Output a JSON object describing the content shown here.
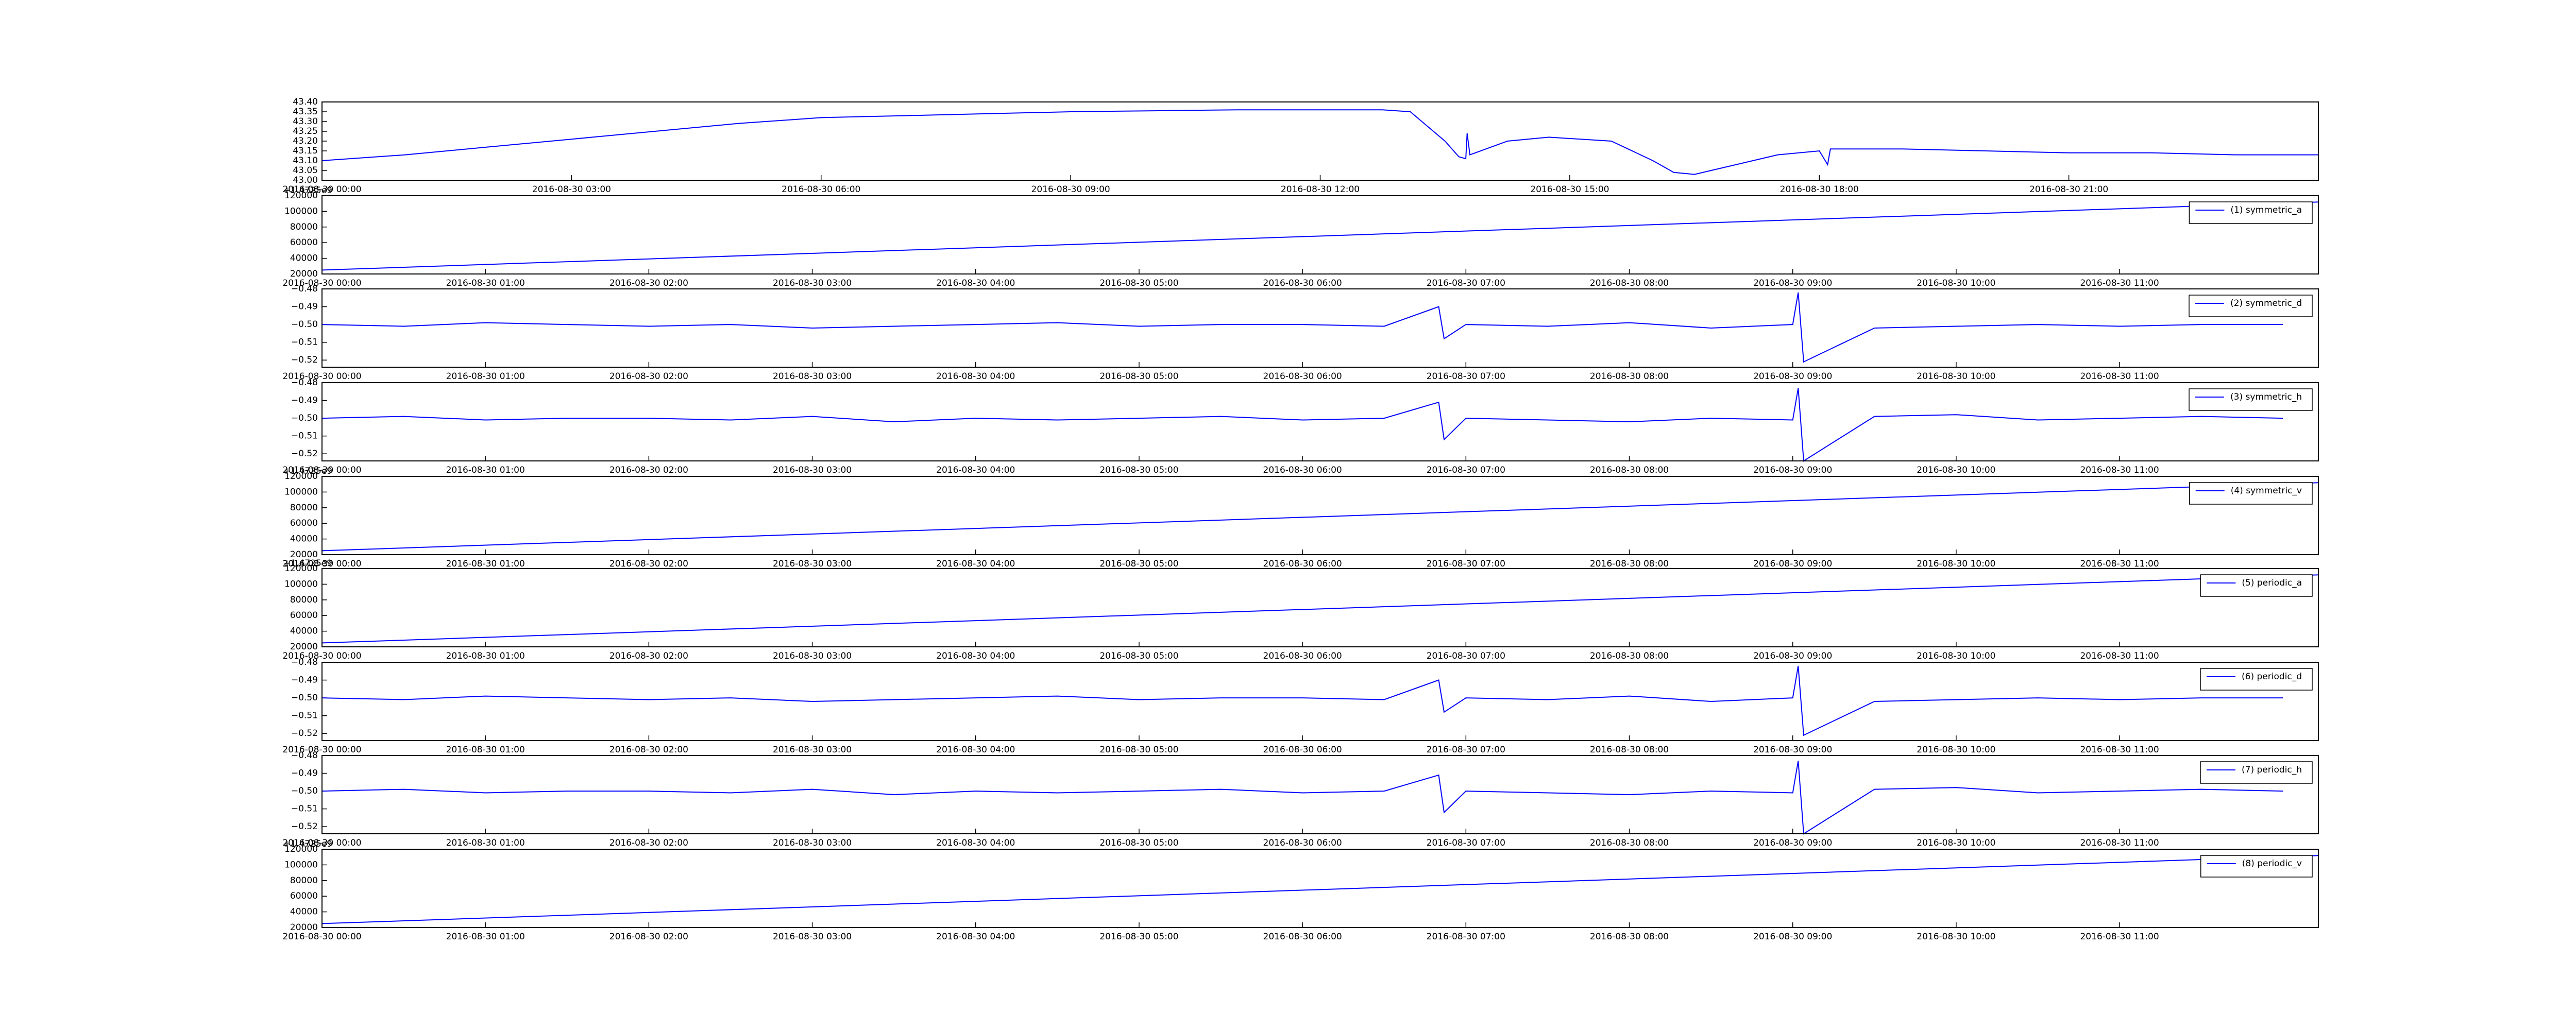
{
  "chart_data": [
    {
      "type": "line",
      "x": [
        "2016-08-30 00:00",
        "2016-08-30 01:00",
        "2016-08-30 02:00",
        "2016-08-30 03:00",
        "2016-08-30 04:00",
        "2016-08-30 05:00",
        "2016-08-30 06:00",
        "2016-08-30 07:00",
        "2016-08-30 08:00",
        "2016-08-30 09:00",
        "2016-08-30 10:00",
        "2016-08-30 11:00",
        "2016-08-30 12:00",
        "2016-08-30 12:45",
        "2016-08-30 13:05",
        "2016-08-30 13:30",
        "2016-08-30 13:40",
        "2016-08-30 13:45",
        "2016-08-30 13:46",
        "2016-08-30 13:48",
        "2016-08-30 14:15",
        "2016-08-30 14:45",
        "2016-08-30 15:30",
        "2016-08-30 16:00",
        "2016-08-30 16:15",
        "2016-08-30 16:30",
        "2016-08-30 17:00",
        "2016-08-30 17:30",
        "2016-08-30 18:00",
        "2016-08-30 18:06",
        "2016-08-30 18:08",
        "2016-08-30 19:00",
        "2016-08-30 20:00",
        "2016-08-30 21:00",
        "2016-08-30 22:00",
        "2016-08-30 23:00",
        "2016-08-31 00:00"
      ],
      "series": [
        {
          "color": "#0000ff",
          "values": [
            43.1,
            43.13,
            43.17,
            43.21,
            43.25,
            43.29,
            43.32,
            43.33,
            43.34,
            43.35,
            43.355,
            43.36,
            43.36,
            43.36,
            43.35,
            43.2,
            43.12,
            43.11,
            43.24,
            43.13,
            43.2,
            43.22,
            43.2,
            43.1,
            43.04,
            43.03,
            43.08,
            43.13,
            43.15,
            43.08,
            43.16,
            43.16,
            43.15,
            43.14,
            43.14,
            43.13,
            43.13
          ]
        }
      ],
      "xlim": [
        "2016-08-30 00:00",
        "2016-08-31 00:00"
      ],
      "xticks": [
        "2016-08-30 00:00",
        "2016-08-30 03:00",
        "2016-08-30 06:00",
        "2016-08-30 09:00",
        "2016-08-30 12:00",
        "2016-08-30 15:00",
        "2016-08-30 18:00",
        "2016-08-30 21:00"
      ],
      "ylim": [
        43.0,
        43.4
      ],
      "yticks": [
        {
          "value": 43.0,
          "label": "43.00"
        },
        43.05,
        {
          "value": 43.1,
          "label": "43.10"
        },
        43.15,
        {
          "value": 43.2,
          "label": "43.20"
        },
        43.25,
        {
          "value": 43.3,
          "label": "43.30"
        },
        43.35,
        {
          "value": 43.4,
          "label": "43.40"
        }
      ]
    },
    {
      "type": "line",
      "offset_text": "+1.4725e9",
      "legend": "upper right",
      "x": [
        "2016-08-30 00:00",
        "2016-08-30 12:13"
      ],
      "series": [
        {
          "name": "(1) symmetric_a",
          "color": "#0000ff",
          "values": [
            25000,
            112000
          ]
        }
      ],
      "xlim": [
        "2016-08-30 00:00",
        "2016-08-30 12:13"
      ],
      "xticks": [
        "2016-08-30 00:00",
        "2016-08-30 01:00",
        "2016-08-30 02:00",
        "2016-08-30 03:00",
        "2016-08-30 04:00",
        "2016-08-30 05:00",
        "2016-08-30 06:00",
        "2016-08-30 07:00",
        "2016-08-30 08:00",
        "2016-08-30 09:00",
        "2016-08-30 10:00",
        "2016-08-30 11:00"
      ],
      "ylim": [
        20000,
        120000
      ],
      "yticks": [
        20000,
        40000,
        60000,
        80000,
        100000,
        120000
      ]
    },
    {
      "type": "line",
      "legend": "upper right",
      "x": [
        "2016-08-30 00:00",
        "2016-08-30 00:30",
        "2016-08-30 01:00",
        "2016-08-30 01:30",
        "2016-08-30 02:00",
        "2016-08-30 02:30",
        "2016-08-30 03:00",
        "2016-08-30 03:30",
        "2016-08-30 04:00",
        "2016-08-30 04:30",
        "2016-08-30 05:00",
        "2016-08-30 05:30",
        "2016-08-30 06:00",
        "2016-08-30 06:30",
        "2016-08-30 06:50",
        "2016-08-30 06:52",
        "2016-08-30 07:00",
        "2016-08-30 07:30",
        "2016-08-30 08:00",
        "2016-08-30 08:30",
        "2016-08-30 09:00",
        "2016-08-30 09:02",
        "2016-08-30 09:04",
        "2016-08-30 09:30",
        "2016-08-30 10:00",
        "2016-08-30 10:30",
        "2016-08-30 11:00",
        "2016-08-30 11:30",
        "2016-08-30 12:00"
      ],
      "series": [
        {
          "name": "(2) symmetric_d",
          "color": "#0000ff",
          "values": [
            -0.5,
            -0.501,
            -0.499,
            -0.5,
            -0.501,
            -0.5,
            -0.502,
            -0.501,
            -0.5,
            -0.499,
            -0.501,
            -0.5,
            -0.5,
            -0.501,
            -0.49,
            -0.508,
            -0.5,
            -0.501,
            -0.499,
            -0.502,
            -0.5,
            -0.482,
            -0.521,
            -0.502,
            -0.501,
            -0.5,
            -0.501,
            -0.5,
            -0.5
          ]
        }
      ],
      "xlim": [
        "2016-08-30 00:00",
        "2016-08-30 12:13"
      ],
      "xticks": [
        "2016-08-30 00:00",
        "2016-08-30 01:00",
        "2016-08-30 02:00",
        "2016-08-30 03:00",
        "2016-08-30 04:00",
        "2016-08-30 05:00",
        "2016-08-30 06:00",
        "2016-08-30 07:00",
        "2016-08-30 08:00",
        "2016-08-30 09:00",
        "2016-08-30 10:00",
        "2016-08-30 11:00"
      ],
      "ylim": [
        -0.524,
        -0.48
      ],
      "yticks": [
        {
          "value": -0.52,
          "label": "−0.52"
        },
        {
          "value": -0.51,
          "label": "−0.51"
        },
        {
          "value": -0.5,
          "label": "−0.50"
        },
        {
          "value": -0.49,
          "label": "−0.49"
        },
        {
          "value": -0.48,
          "label": "−0.48"
        }
      ]
    },
    {
      "type": "line",
      "legend": "upper right",
      "x": [
        "2016-08-30 00:00",
        "2016-08-30 00:30",
        "2016-08-30 01:00",
        "2016-08-30 01:30",
        "2016-08-30 02:00",
        "2016-08-30 02:30",
        "2016-08-30 03:00",
        "2016-08-30 03:30",
        "2016-08-30 04:00",
        "2016-08-30 04:30",
        "2016-08-30 05:00",
        "2016-08-30 05:30",
        "2016-08-30 06:00",
        "2016-08-30 06:30",
        "2016-08-30 06:50",
        "2016-08-30 06:52",
        "2016-08-30 07:00",
        "2016-08-30 07:30",
        "2016-08-30 08:00",
        "2016-08-30 08:30",
        "2016-08-30 09:00",
        "2016-08-30 09:02",
        "2016-08-30 09:04",
        "2016-08-30 09:30",
        "2016-08-30 10:00",
        "2016-08-30 10:30",
        "2016-08-30 11:00",
        "2016-08-30 11:30",
        "2016-08-30 12:00"
      ],
      "series": [
        {
          "name": "(3) symmetric_h",
          "color": "#0000ff",
          "values": [
            -0.5,
            -0.499,
            -0.501,
            -0.5,
            -0.5,
            -0.501,
            -0.499,
            -0.502,
            -0.5,
            -0.501,
            -0.5,
            -0.499,
            -0.501,
            -0.5,
            -0.491,
            -0.512,
            -0.5,
            -0.501,
            -0.502,
            -0.5,
            -0.501,
            -0.483,
            -0.524,
            -0.499,
            -0.498,
            -0.501,
            -0.5,
            -0.499,
            -0.5
          ]
        }
      ],
      "xlim": [
        "2016-08-30 00:00",
        "2016-08-30 12:13"
      ],
      "xticks": [
        "2016-08-30 00:00",
        "2016-08-30 01:00",
        "2016-08-30 02:00",
        "2016-08-30 03:00",
        "2016-08-30 04:00",
        "2016-08-30 05:00",
        "2016-08-30 06:00",
        "2016-08-30 07:00",
        "2016-08-30 08:00",
        "2016-08-30 09:00",
        "2016-08-30 10:00",
        "2016-08-30 11:00"
      ],
      "ylim": [
        -0.524,
        -0.48
      ],
      "yticks": [
        {
          "value": -0.52,
          "label": "−0.52"
        },
        {
          "value": -0.51,
          "label": "−0.51"
        },
        {
          "value": -0.5,
          "label": "−0.50"
        },
        {
          "value": -0.49,
          "label": "−0.49"
        },
        {
          "value": -0.48,
          "label": "−0.48"
        }
      ]
    },
    {
      "type": "line",
      "offset_text": "+1.4725e9",
      "legend": "upper right",
      "x": [
        "2016-08-30 00:00",
        "2016-08-30 12:13"
      ],
      "series": [
        {
          "name": "(4) symmetric_v",
          "color": "#0000ff",
          "values": [
            25000,
            112000
          ]
        }
      ],
      "xlim": [
        "2016-08-30 00:00",
        "2016-08-30 12:13"
      ],
      "xticks": [
        "2016-08-30 00:00",
        "2016-08-30 01:00",
        "2016-08-30 02:00",
        "2016-08-30 03:00",
        "2016-08-30 04:00",
        "2016-08-30 05:00",
        "2016-08-30 06:00",
        "2016-08-30 07:00",
        "2016-08-30 08:00",
        "2016-08-30 09:00",
        "2016-08-30 10:00",
        "2016-08-30 11:00"
      ],
      "ylim": [
        20000,
        120000
      ],
      "yticks": [
        20000,
        40000,
        60000,
        80000,
        100000,
        120000
      ]
    },
    {
      "type": "line",
      "offset_text": "+1.4725e9",
      "legend": "upper right",
      "x": [
        "2016-08-30 00:00",
        "2016-08-30 12:13"
      ],
      "series": [
        {
          "name": "(5) periodic_a",
          "color": "#0000ff",
          "values": [
            25000,
            112000
          ]
        }
      ],
      "xlim": [
        "2016-08-30 00:00",
        "2016-08-30 12:13"
      ],
      "xticks": [
        "2016-08-30 00:00",
        "2016-08-30 01:00",
        "2016-08-30 02:00",
        "2016-08-30 03:00",
        "2016-08-30 04:00",
        "2016-08-30 05:00",
        "2016-08-30 06:00",
        "2016-08-30 07:00",
        "2016-08-30 08:00",
        "2016-08-30 09:00",
        "2016-08-30 10:00",
        "2016-08-30 11:00"
      ],
      "ylim": [
        20000,
        120000
      ],
      "yticks": [
        20000,
        40000,
        60000,
        80000,
        100000,
        120000
      ]
    },
    {
      "type": "line",
      "legend": "upper right",
      "x": [
        "2016-08-30 00:00",
        "2016-08-30 00:30",
        "2016-08-30 01:00",
        "2016-08-30 01:30",
        "2016-08-30 02:00",
        "2016-08-30 02:30",
        "2016-08-30 03:00",
        "2016-08-30 03:30",
        "2016-08-30 04:00",
        "2016-08-30 04:30",
        "2016-08-30 05:00",
        "2016-08-30 05:30",
        "2016-08-30 06:00",
        "2016-08-30 06:30",
        "2016-08-30 06:50",
        "2016-08-30 06:52",
        "2016-08-30 07:00",
        "2016-08-30 07:30",
        "2016-08-30 08:00",
        "2016-08-30 08:30",
        "2016-08-30 09:00",
        "2016-08-30 09:02",
        "2016-08-30 09:04",
        "2016-08-30 09:30",
        "2016-08-30 10:00",
        "2016-08-30 10:30",
        "2016-08-30 11:00",
        "2016-08-30 11:30",
        "2016-08-30 12:00"
      ],
      "series": [
        {
          "name": "(6) periodic_d",
          "color": "#0000ff",
          "values": [
            -0.5,
            -0.501,
            -0.499,
            -0.5,
            -0.501,
            -0.5,
            -0.502,
            -0.501,
            -0.5,
            -0.499,
            -0.501,
            -0.5,
            -0.5,
            -0.501,
            -0.49,
            -0.508,
            -0.5,
            -0.501,
            -0.499,
            -0.502,
            -0.5,
            -0.482,
            -0.521,
            -0.502,
            -0.501,
            -0.5,
            -0.501,
            -0.5,
            -0.5
          ]
        }
      ],
      "xlim": [
        "2016-08-30 00:00",
        "2016-08-30 12:13"
      ],
      "xticks": [
        "2016-08-30 00:00",
        "2016-08-30 01:00",
        "2016-08-30 02:00",
        "2016-08-30 03:00",
        "2016-08-30 04:00",
        "2016-08-30 05:00",
        "2016-08-30 06:00",
        "2016-08-30 07:00",
        "2016-08-30 08:00",
        "2016-08-30 09:00",
        "2016-08-30 10:00",
        "2016-08-30 11:00"
      ],
      "ylim": [
        -0.524,
        -0.48
      ],
      "yticks": [
        {
          "value": -0.52,
          "label": "−0.52"
        },
        {
          "value": -0.51,
          "label": "−0.51"
        },
        {
          "value": -0.5,
          "label": "−0.50"
        },
        {
          "value": -0.49,
          "label": "−0.49"
        },
        {
          "value": -0.48,
          "label": "−0.48"
        }
      ]
    },
    {
      "type": "line",
      "legend": "upper right",
      "x": [
        "2016-08-30 00:00",
        "2016-08-30 00:30",
        "2016-08-30 01:00",
        "2016-08-30 01:30",
        "2016-08-30 02:00",
        "2016-08-30 02:30",
        "2016-08-30 03:00",
        "2016-08-30 03:30",
        "2016-08-30 04:00",
        "2016-08-30 04:30",
        "2016-08-30 05:00",
        "2016-08-30 05:30",
        "2016-08-30 06:00",
        "2016-08-30 06:30",
        "2016-08-30 06:50",
        "2016-08-30 06:52",
        "2016-08-30 07:00",
        "2016-08-30 07:30",
        "2016-08-30 08:00",
        "2016-08-30 08:30",
        "2016-08-30 09:00",
        "2016-08-30 09:02",
        "2016-08-30 09:04",
        "2016-08-30 09:30",
        "2016-08-30 10:00",
        "2016-08-30 10:30",
        "2016-08-30 11:00",
        "2016-08-30 11:30",
        "2016-08-30 12:00"
      ],
      "series": [
        {
          "name": "(7) periodic_h",
          "color": "#0000ff",
          "values": [
            -0.5,
            -0.499,
            -0.501,
            -0.5,
            -0.5,
            -0.501,
            -0.499,
            -0.502,
            -0.5,
            -0.501,
            -0.5,
            -0.499,
            -0.501,
            -0.5,
            -0.491,
            -0.512,
            -0.5,
            -0.501,
            -0.502,
            -0.5,
            -0.501,
            -0.483,
            -0.524,
            -0.499,
            -0.498,
            -0.501,
            -0.5,
            -0.499,
            -0.5
          ]
        }
      ],
      "xlim": [
        "2016-08-30 00:00",
        "2016-08-30 12:13"
      ],
      "xticks": [
        "2016-08-30 00:00",
        "2016-08-30 01:00",
        "2016-08-30 02:00",
        "2016-08-30 03:00",
        "2016-08-30 04:00",
        "2016-08-30 05:00",
        "2016-08-30 06:00",
        "2016-08-30 07:00",
        "2016-08-30 08:00",
        "2016-08-30 09:00",
        "2016-08-30 10:00",
        "2016-08-30 11:00"
      ],
      "ylim": [
        -0.524,
        -0.48
      ],
      "yticks": [
        {
          "value": -0.52,
          "label": "−0.52"
        },
        {
          "value": -0.51,
          "label": "−0.51"
        },
        {
          "value": -0.5,
          "label": "−0.50"
        },
        {
          "value": -0.49,
          "label": "−0.49"
        },
        {
          "value": -0.48,
          "label": "−0.48"
        }
      ]
    },
    {
      "type": "line",
      "offset_text": "+1.4725e9",
      "legend": "upper right",
      "x": [
        "2016-08-30 00:00",
        "2016-08-30 12:13"
      ],
      "series": [
        {
          "name": "(8) periodic_v",
          "color": "#0000ff",
          "values": [
            25000,
            112000
          ]
        }
      ],
      "xlim": [
        "2016-08-30 00:00",
        "2016-08-30 12:13"
      ],
      "xticks": [
        "2016-08-30 00:00",
        "2016-08-30 01:00",
        "2016-08-30 02:00",
        "2016-08-30 03:00",
        "2016-08-30 04:00",
        "2016-08-30 05:00",
        "2016-08-30 06:00",
        "2016-08-30 07:00",
        "2016-08-30 08:00",
        "2016-08-30 09:00",
        "2016-08-30 10:00",
        "2016-08-30 11:00"
      ],
      "ylim": [
        20000,
        120000
      ],
      "yticks": [
        20000,
        40000,
        60000,
        80000,
        100000,
        120000
      ]
    }
  ]
}
